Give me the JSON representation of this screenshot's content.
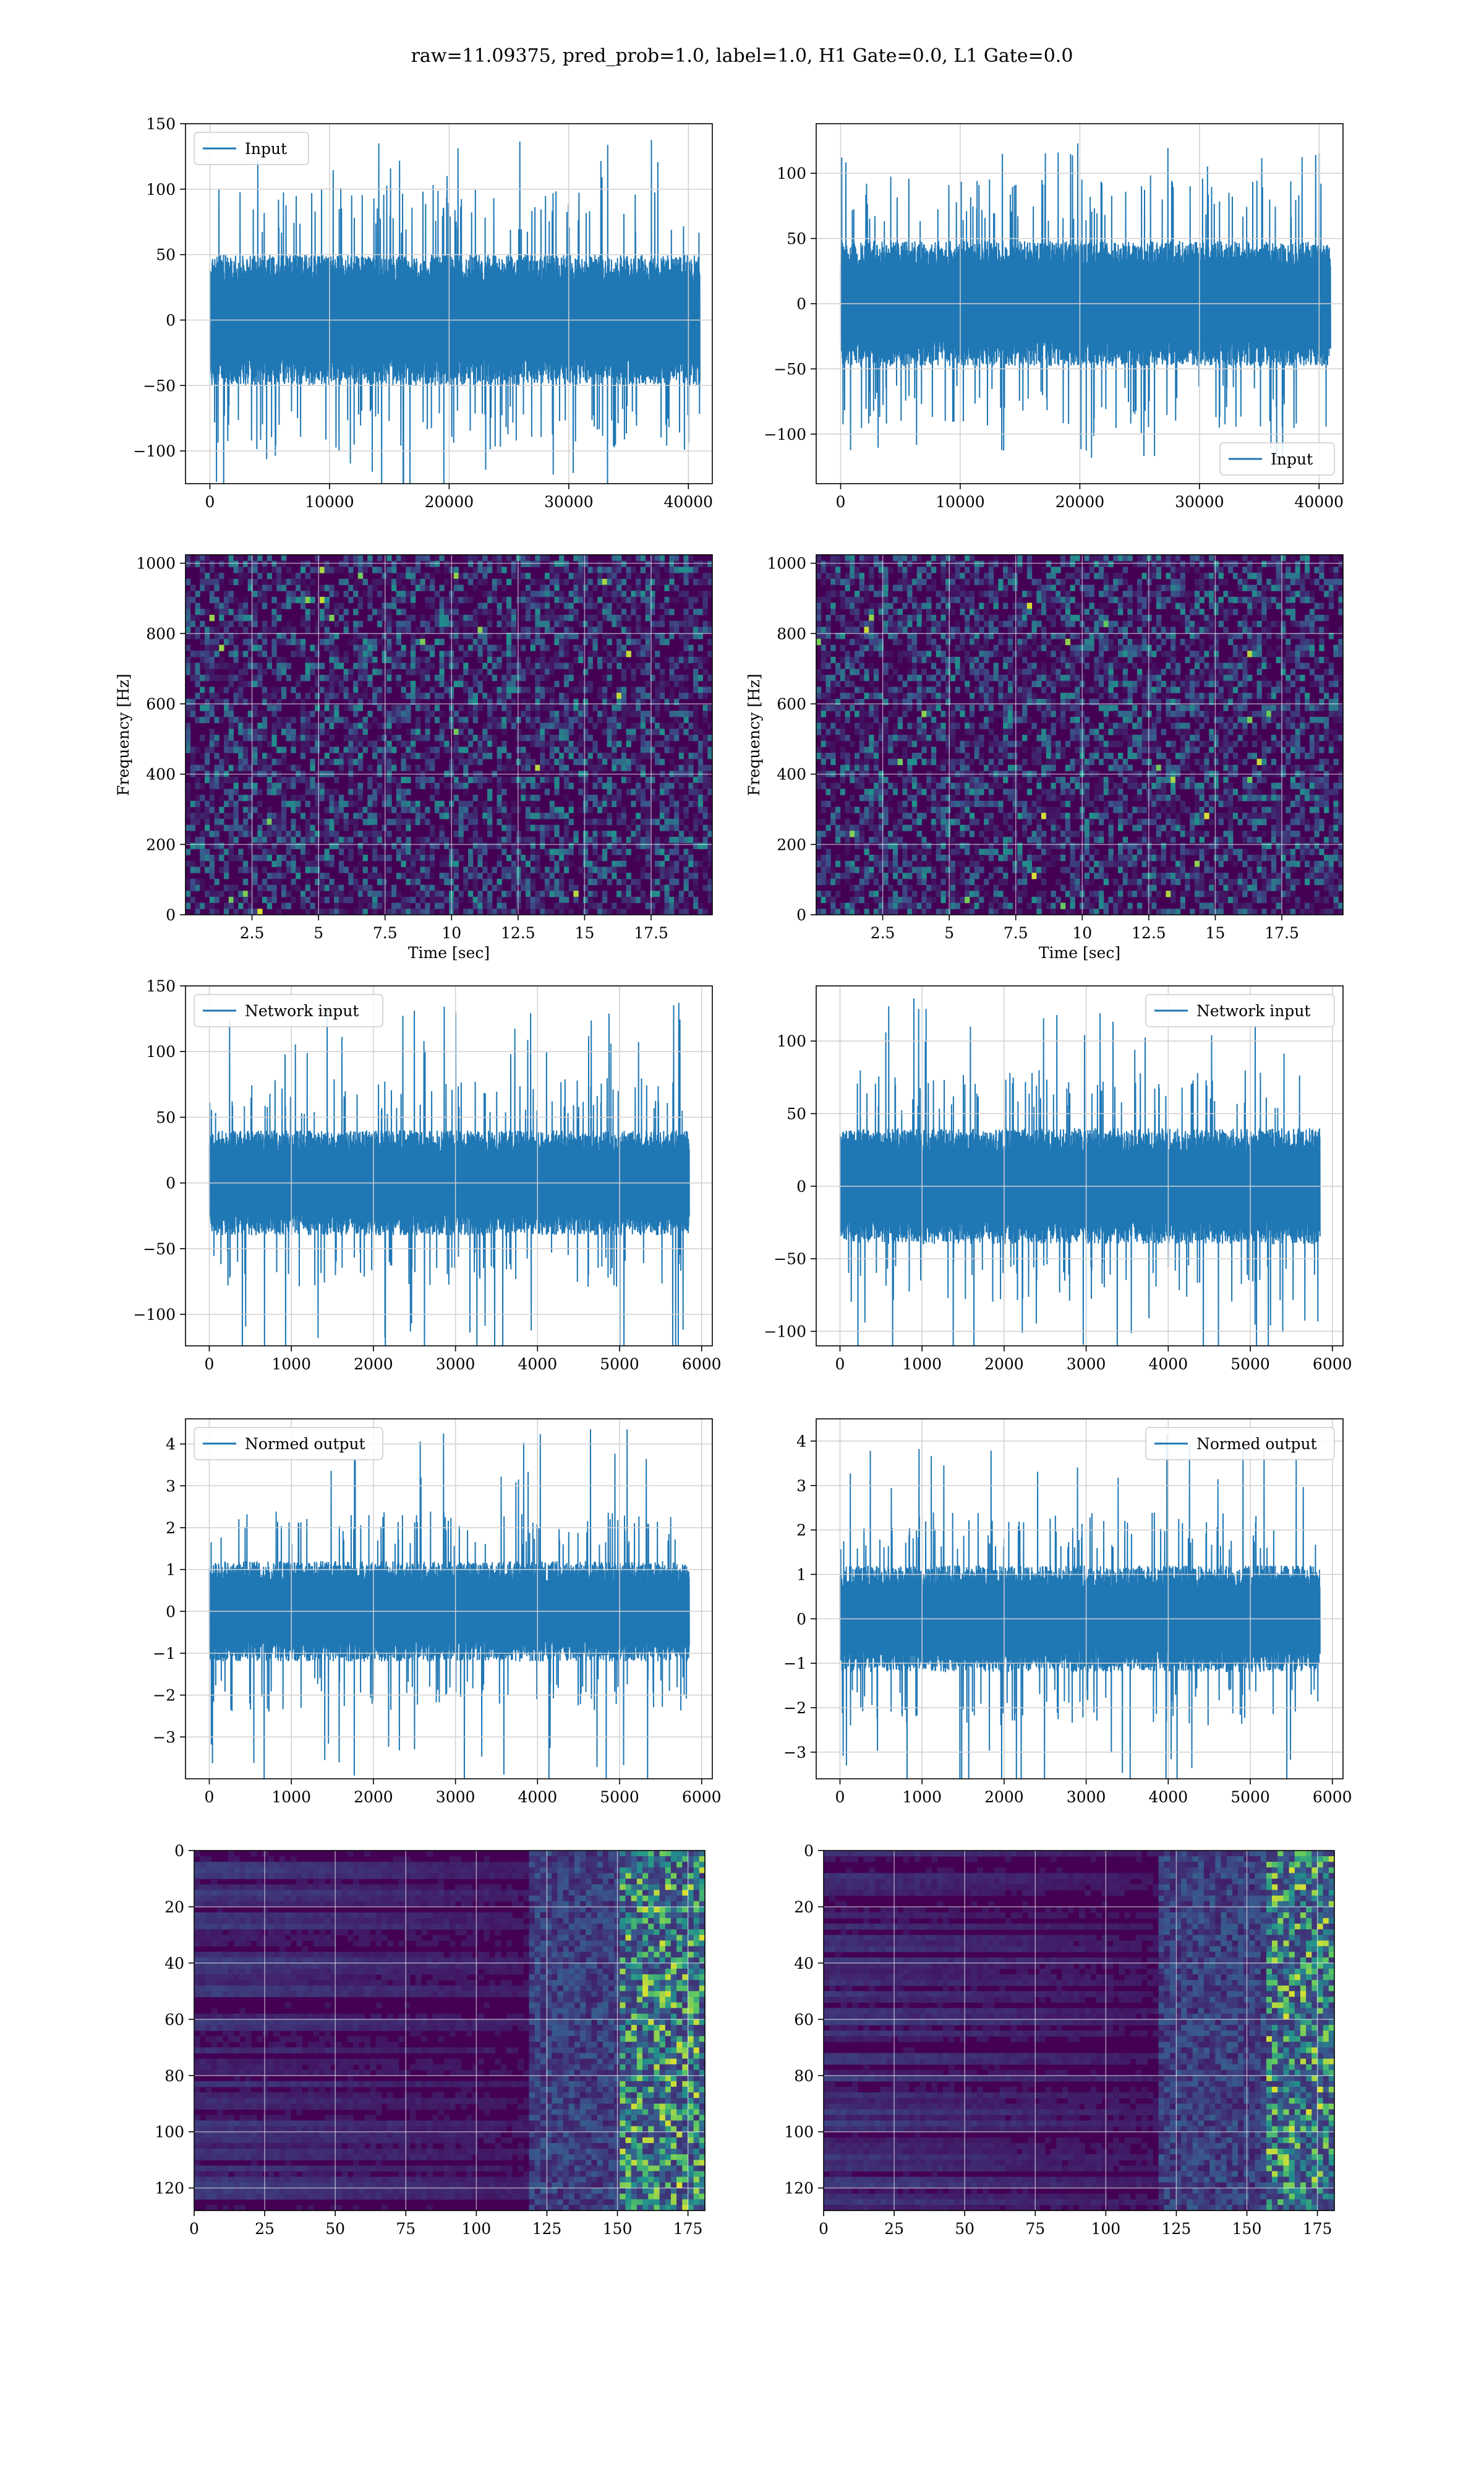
{
  "figure": {
    "title": "raw=11.09375, pred_prob=1.0, label=1.0, H1 Gate=0.0, L1 Gate=0.0"
  },
  "chart_data": [
    {
      "id": "input-h1",
      "type": "line",
      "kind": "signal",
      "xlim": [
        -2040,
        42000
      ],
      "ylim": [
        -125,
        150
      ],
      "xticks": [
        0,
        10000,
        20000,
        30000,
        40000
      ],
      "yticks": [
        -100,
        -50,
        0,
        50,
        100,
        150
      ],
      "legend": "Input",
      "legend_loc": "upper-left",
      "signal": {
        "x_start": 0,
        "x_end": 40960,
        "band": 50,
        "extreme": 138,
        "seed": 11
      },
      "grid": true
    },
    {
      "id": "input-l1",
      "type": "line",
      "kind": "signal",
      "xlim": [
        -2040,
        42000
      ],
      "ylim": [
        -138,
        138
      ],
      "xticks": [
        0,
        10000,
        20000,
        30000,
        40000
      ],
      "yticks": [
        -100,
        -50,
        0,
        50,
        100
      ],
      "legend": "Input",
      "legend_loc": "lower-right",
      "signal": {
        "x_start": 0,
        "x_end": 40960,
        "band": 48,
        "extreme": 125,
        "seed": 23
      },
      "grid": true
    },
    {
      "id": "spectrogram-h1",
      "type": "heatmap",
      "kind": "spectrogram",
      "xlim": [
        0,
        19.8
      ],
      "ylim": [
        0,
        1024
      ],
      "xticks": [
        2.5,
        5.0,
        7.5,
        10.0,
        12.5,
        15.0,
        17.5
      ],
      "yticks": [
        0,
        200,
        400,
        600,
        800,
        1000
      ],
      "xlabel": "Time [sec]",
      "ylabel": "Frequency [Hz]",
      "colormap": [
        "#440154",
        "#3b528b",
        "#21918c",
        "#5ec962",
        "#fde725"
      ],
      "grid": true,
      "seed": 31
    },
    {
      "id": "spectrogram-l1",
      "type": "heatmap",
      "kind": "spectrogram",
      "xlim": [
        0,
        19.8
      ],
      "ylim": [
        0,
        1024
      ],
      "xticks": [
        2.5,
        5.0,
        7.5,
        10.0,
        12.5,
        15.0,
        17.5
      ],
      "yticks": [
        0,
        200,
        400,
        600,
        800,
        1000
      ],
      "xlabel": "Time [sec]",
      "ylabel": "Frequency [Hz]",
      "colormap": [
        "#440154",
        "#3b528b",
        "#21918c",
        "#5ec962",
        "#fde725"
      ],
      "grid": true,
      "seed": 47
    },
    {
      "id": "network-input-h1",
      "type": "line",
      "kind": "signal",
      "xlim": [
        -290,
        6130
      ],
      "ylim": [
        -124,
        150
      ],
      "xticks": [
        0,
        1000,
        2000,
        3000,
        4000,
        5000,
        6000
      ],
      "yticks": [
        -100,
        -50,
        0,
        50,
        100,
        150
      ],
      "legend": "Network input",
      "legend_loc": "upper-left",
      "signal": {
        "x_start": 0,
        "x_end": 5850,
        "band": 40,
        "extreme": 138,
        "seed": 59
      },
      "grid": true
    },
    {
      "id": "network-input-l1",
      "type": "line",
      "kind": "signal",
      "xlim": [
        -290,
        6130
      ],
      "ylim": [
        -110,
        138
      ],
      "xticks": [
        0,
        1000,
        2000,
        3000,
        4000,
        5000,
        6000
      ],
      "yticks": [
        -100,
        -50,
        0,
        50,
        100
      ],
      "legend": "Network input",
      "legend_loc": "upper-right",
      "signal": {
        "x_start": 0,
        "x_end": 5850,
        "band": 40,
        "extreme": 130,
        "seed": 71
      },
      "grid": true
    },
    {
      "id": "normed-output-h1",
      "type": "line",
      "kind": "signal",
      "xlim": [
        -290,
        6130
      ],
      "ylim": [
        -4.0,
        4.6
      ],
      "xticks": [
        0,
        1000,
        2000,
        3000,
        4000,
        5000,
        6000
      ],
      "yticks": [
        -3,
        -2,
        -1,
        0,
        1,
        2,
        3,
        4
      ],
      "legend": "Normed output",
      "legend_loc": "upper-left",
      "signal": {
        "x_start": 0,
        "x_end": 5850,
        "band": 1.2,
        "extreme": 4.4,
        "seed": 83
      },
      "grid": true
    },
    {
      "id": "normed-output-l1",
      "type": "line",
      "kind": "signal",
      "xlim": [
        -290,
        6130
      ],
      "ylim": [
        -3.6,
        4.5
      ],
      "xticks": [
        0,
        1000,
        2000,
        3000,
        4000,
        5000,
        6000
      ],
      "yticks": [
        -3,
        -2,
        -1,
        0,
        1,
        2,
        3,
        4
      ],
      "legend": "Normed output",
      "legend_loc": "upper-right",
      "signal": {
        "x_start": 0,
        "x_end": 5850,
        "band": 1.2,
        "extreme": 4.2,
        "seed": 97
      },
      "grid": true
    },
    {
      "id": "feature-map-h1",
      "type": "heatmap",
      "kind": "feature",
      "xlim": [
        0,
        181
      ],
      "ylim": [
        128,
        0
      ],
      "xticks": [
        0,
        25,
        50,
        75,
        100,
        125,
        150,
        175
      ],
      "yticks": [
        0,
        20,
        40,
        60,
        80,
        100,
        120
      ],
      "colormap": [
        "#440154",
        "#3b528b",
        "#21918c",
        "#5ec962",
        "#fde725"
      ],
      "grid": true,
      "seed": 101,
      "active_from": 150
    },
    {
      "id": "feature-map-l1",
      "type": "heatmap",
      "kind": "feature",
      "xlim": [
        0,
        181
      ],
      "ylim": [
        128,
        0
      ],
      "xticks": [
        0,
        25,
        50,
        75,
        100,
        125,
        150,
        175
      ],
      "yticks": [
        0,
        20,
        40,
        60,
        80,
        100,
        120
      ],
      "colormap": [
        "#440154",
        "#3b528b",
        "#21918c",
        "#5ec962",
        "#fde725"
      ],
      "grid": true,
      "seed": 113,
      "active_from": 155
    }
  ]
}
